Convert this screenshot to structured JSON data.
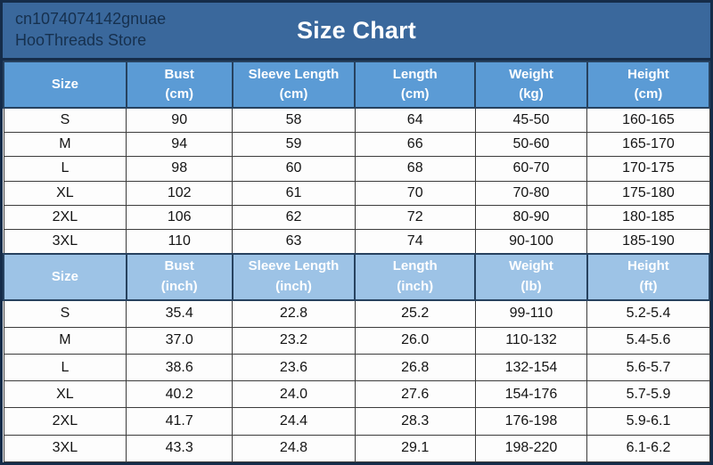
{
  "banner": {
    "store_line1": "cn1074074142gnuae",
    "store_line2": "HooThreads Store",
    "title": "Size Chart"
  },
  "colors": {
    "banner_bg": "#3a689c",
    "banner_title": "#ffffff",
    "store_text": "#16304e",
    "header_cm_bg": "#5b9bd5",
    "header_inch_bg": "#9dc3e6",
    "header_text": "#ffffff",
    "header_border": "#27425f",
    "row_bg": "#fdfdfd",
    "cell_text": "#141414",
    "grid_border": "#3c3c3c",
    "outer_border": "#152c49"
  },
  "chart_data": {
    "type": "table",
    "title": "Size Chart",
    "sections": [
      {
        "id": "metric",
        "columns": [
          {
            "label": "Size",
            "unit": ""
          },
          {
            "label": "Bust",
            "unit": "(cm)"
          },
          {
            "label": "Sleeve Length",
            "unit": "(cm)"
          },
          {
            "label": "Length",
            "unit": "(cm)"
          },
          {
            "label": "Weight",
            "unit": "(kg)"
          },
          {
            "label": "Height",
            "unit": "(cm)"
          }
        ],
        "rows": [
          [
            "S",
            "90",
            "58",
            "64",
            "45-50",
            "160-165"
          ],
          [
            "M",
            "94",
            "59",
            "66",
            "50-60",
            "165-170"
          ],
          [
            "L",
            "98",
            "60",
            "68",
            "60-70",
            "170-175"
          ],
          [
            "XL",
            "102",
            "61",
            "70",
            "70-80",
            "175-180"
          ],
          [
            "2XL",
            "106",
            "62",
            "72",
            "80-90",
            "180-185"
          ],
          [
            "3XL",
            "110",
            "63",
            "74",
            "90-100",
            "185-190"
          ]
        ]
      },
      {
        "id": "imperial",
        "columns": [
          {
            "label": "Size",
            "unit": ""
          },
          {
            "label": "Bust",
            "unit": "(inch)"
          },
          {
            "label": "Sleeve Length",
            "unit": "(inch)"
          },
          {
            "label": "Length",
            "unit": "(inch)"
          },
          {
            "label": "Weight",
            "unit": "(lb)"
          },
          {
            "label": "Height",
            "unit": "(ft)"
          }
        ],
        "rows": [
          [
            "S",
            "35.4",
            "22.8",
            "25.2",
            "99-110",
            "5.2-5.4"
          ],
          [
            "M",
            "37.0",
            "23.2",
            "26.0",
            "110-132",
            "5.4-5.6"
          ],
          [
            "L",
            "38.6",
            "23.6",
            "26.8",
            "132-154",
            "5.6-5.7"
          ],
          [
            "XL",
            "40.2",
            "24.0",
            "27.6",
            "154-176",
            "5.7-5.9"
          ],
          [
            "2XL",
            "41.7",
            "24.4",
            "28.3",
            "176-198",
            "5.9-6.1"
          ],
          [
            "3XL",
            "43.3",
            "24.8",
            "29.1",
            "198-220",
            "6.1-6.2"
          ]
        ]
      }
    ],
    "column_widths_pct": [
      17.4,
      15.0,
      17.4,
      17.0,
      15.9,
      17.3
    ]
  }
}
